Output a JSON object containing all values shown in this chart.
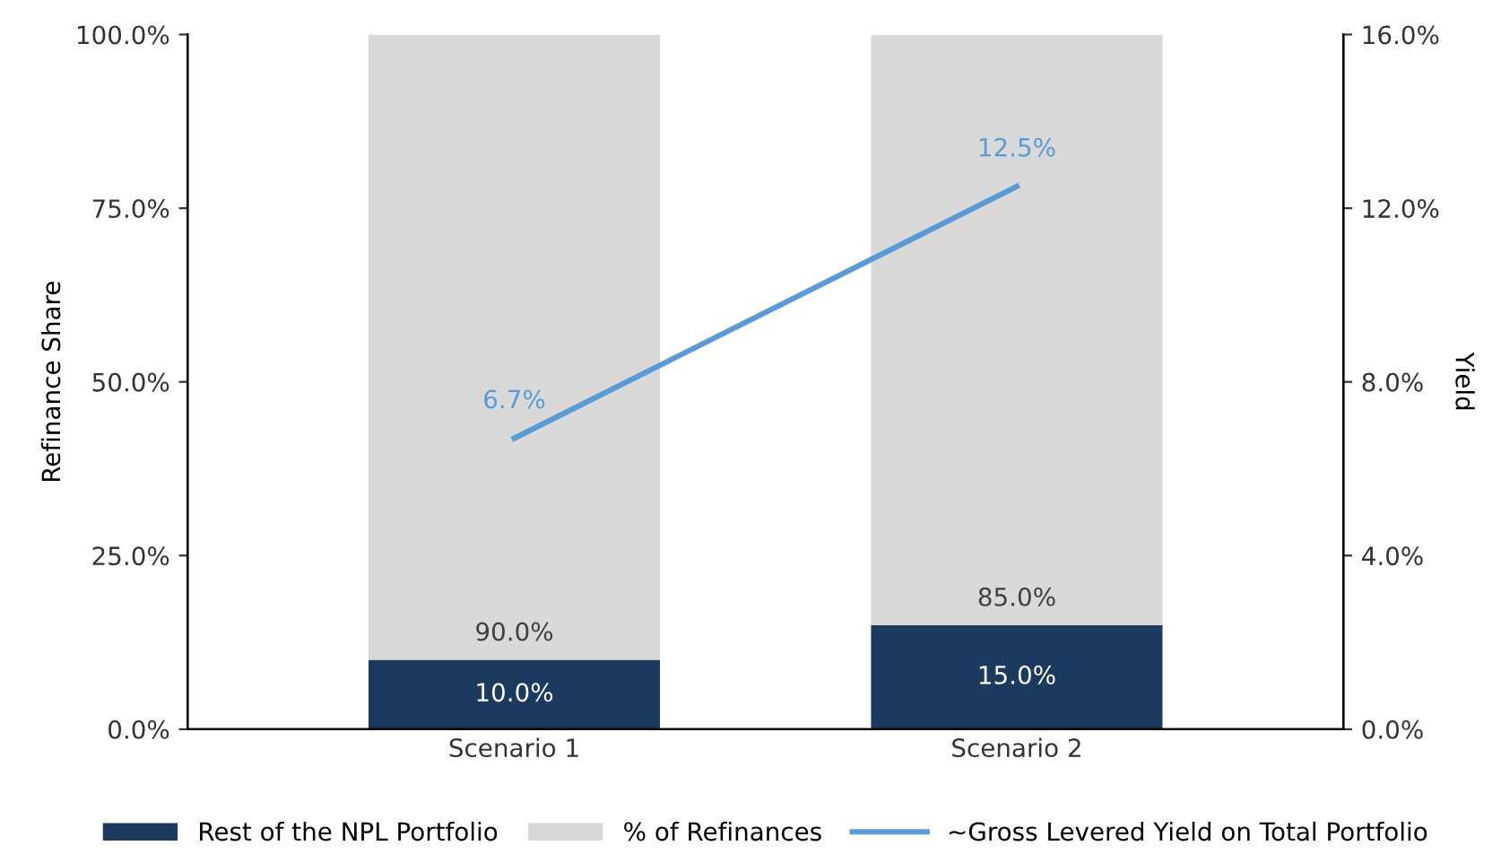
{
  "chart_data": {
    "type": "bar",
    "stacked": true,
    "categories": [
      "Scenario 1",
      "Scenario 2"
    ],
    "ylabel": "Refinance Share",
    "y2label": "Yield",
    "ylim": [
      0,
      100
    ],
    "yticks": [
      {
        "value": 0,
        "label": "0.0%"
      },
      {
        "value": 25,
        "label": "25.0%"
      },
      {
        "value": 50,
        "label": "50.0%"
      },
      {
        "value": 75,
        "label": "75.0%"
      },
      {
        "value": 100,
        "label": "100.0%"
      }
    ],
    "y2lim": [
      0,
      16
    ],
    "y2ticks": [
      {
        "value": 0,
        "label": "0.0%"
      },
      {
        "value": 4,
        "label": "4.0%"
      },
      {
        "value": 8,
        "label": "8.0%"
      },
      {
        "value": 12,
        "label": "12.0%"
      },
      {
        "value": 16,
        "label": "16.0%"
      }
    ],
    "series": [
      {
        "name": "Rest of the NPL Portfolio",
        "color": "#1c3a5e",
        "values": [
          10,
          15
        ],
        "value_labels": [
          "10.0%",
          "15.0%"
        ]
      },
      {
        "name": "% of Refinances",
        "color": "#d9d9d9",
        "values": [
          90,
          85
        ],
        "value_labels": [
          "90.0%",
          "85.0%"
        ]
      },
      {
        "name": "~Gross Levered Yield on Total Portfolio",
        "type": "line",
        "axis": "y2",
        "color": "#5b9bd5",
        "values": [
          6.7,
          12.5
        ],
        "value_labels": [
          "6.7%",
          "12.5%"
        ]
      }
    ],
    "legend": "bottom",
    "grid": false
  }
}
